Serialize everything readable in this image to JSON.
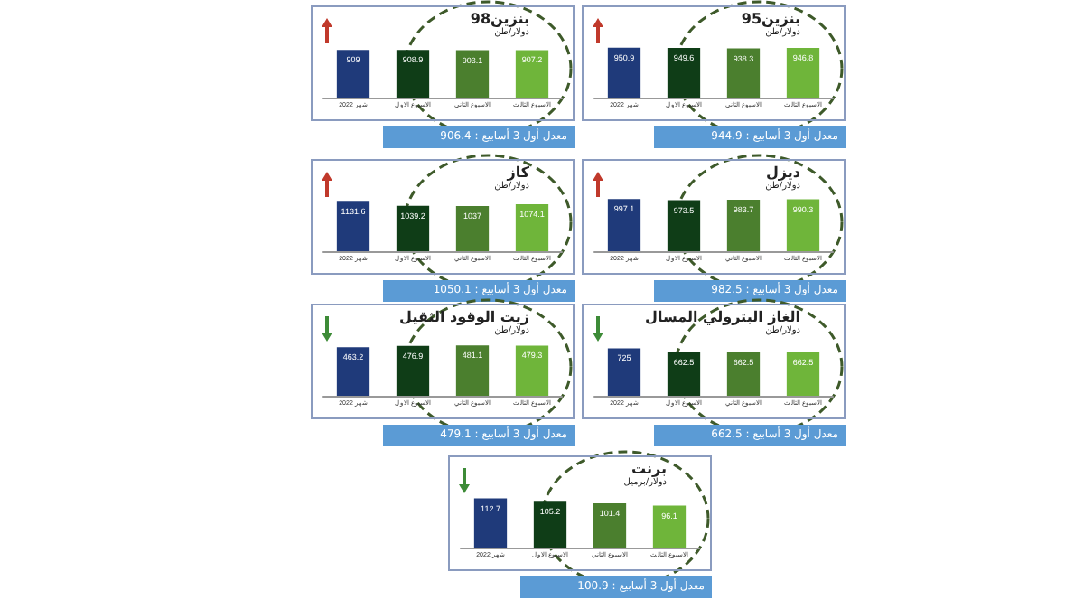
{
  "chart_data": [
    {
      "type": "bar",
      "title": "بنزين98",
      "subtitle": "دولار/طن",
      "categories": [
        "شهر 2022",
        "الاسبوع الاول",
        "الاسبوع الثاني",
        "الاسبوع الثالث"
      ],
      "values": [
        909.0,
        908.9,
        903.1,
        907.2
      ],
      "colors": [
        "#1f3a7a",
        "#0f3d17",
        "#4b7f2e",
        "#6fb53a"
      ],
      "data_labels": true,
      "annotations": [
        "معدل أول 3 أسابيع : 906.4"
      ]
    },
    {
      "type": "bar",
      "title": "بنزين95",
      "subtitle": "دولار/طن",
      "categories": [
        "شهر 2022",
        "الاسبوع الاول",
        "الاسبوع الثاني",
        "الاسبوع الثالث"
      ],
      "values": [
        950.9,
        949.6,
        938.3,
        946.8
      ],
      "colors": [
        "#1f3a7a",
        "#0f3d17",
        "#4b7f2e",
        "#6fb53a"
      ],
      "data_labels": true,
      "annotations": [
        "معدل أول 3 أسابيع : 944.9"
      ]
    },
    {
      "type": "bar",
      "title": "كاز",
      "subtitle": "دولار/طن",
      "categories": [
        "شهر 2022",
        "الاسبوع الاول",
        "الاسبوع الثاني",
        "الاسبوع الثالث"
      ],
      "values": [
        1131.6,
        1039.2,
        1037.0,
        1074.1
      ],
      "colors": [
        "#1f3a7a",
        "#0f3d17",
        "#4b7f2e",
        "#6fb53a"
      ],
      "data_labels": true,
      "annotations": [
        "معدل أول 3 أسابيع : 1050.1"
      ]
    },
    {
      "type": "bar",
      "title": "ديزل",
      "subtitle": "دولار/طن",
      "categories": [
        "شهر 2022",
        "الاسبوع الاول",
        "الاسبوع الثاني",
        "الاسبوع الثالث"
      ],
      "values": [
        997.1,
        973.5,
        983.7,
        990.3
      ],
      "colors": [
        "#1f3a7a",
        "#0f3d17",
        "#4b7f2e",
        "#6fb53a"
      ],
      "data_labels": true,
      "annotations": [
        "معدل أول 3 أسابيع : 982.5"
      ]
    },
    {
      "type": "bar",
      "title": "زيت الوقود الثقيل",
      "subtitle": "دولار/طن",
      "categories": [
        "شهر 2022",
        "الاسبوع الاول",
        "الاسبوع الثاني",
        "الاسبوع الثالث"
      ],
      "values": [
        463.2,
        476.9,
        481.1,
        479.3
      ],
      "colors": [
        "#1f3a7a",
        "#0f3d17",
        "#4b7f2e",
        "#6fb53a"
      ],
      "data_labels": true,
      "annotations": [
        "معدل أول 3 أسابيع : 479.1"
      ]
    },
    {
      "type": "bar",
      "title": "الغاز البترولي المسال",
      "subtitle": "دولار/طن",
      "categories": [
        "شهر 2022",
        "الاسبوع الاول",
        "الاسبوع الثاني",
        "الاسبوع الثالث"
      ],
      "values": [
        725,
        662.5,
        662.5,
        662.5
      ],
      "colors": [
        "#1f3a7a",
        "#0f3d17",
        "#4b7f2e",
        "#6fb53a"
      ],
      "data_labels": true,
      "annotations": [
        "معدل أول 3 أسابيع : 662.5"
      ]
    },
    {
      "type": "bar",
      "title": "برنت",
      "subtitle": "دولار/برميل",
      "categories": [
        "شهر 2022",
        "الاسبوع الاول",
        "الاسبوع الثاني",
        "الاسبوع الثالث"
      ],
      "values": [
        112.7,
        105.2,
        101.4,
        96.1
      ],
      "colors": [
        "#1f3a7a",
        "#0f3d17",
        "#4b7f2e",
        "#6fb53a"
      ],
      "data_labels": true,
      "annotations": [
        "معدل أول 3 أسابيع : 100.9"
      ]
    }
  ]
}
